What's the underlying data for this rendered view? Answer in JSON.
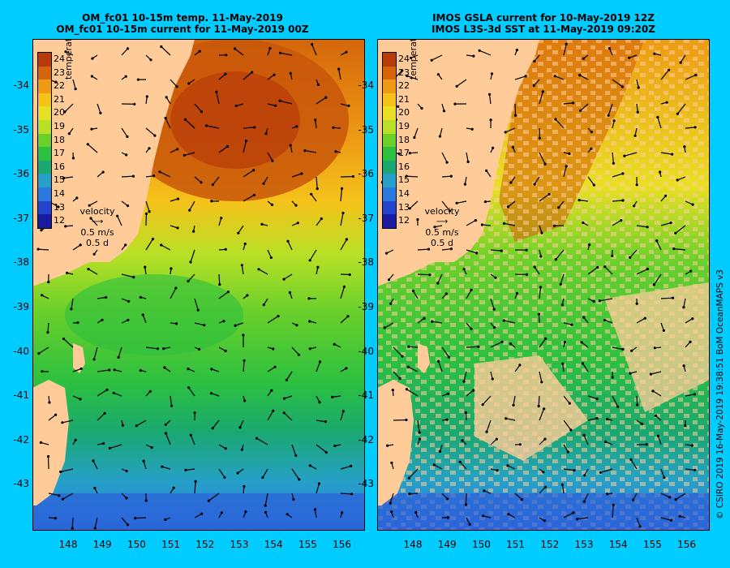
{
  "left_panel": {
    "title_line1": "OM_fc01 10-15m temp. 11-May-2019",
    "title_line2": "OM_fc01 10-15m current for 11-May-2019 00Z"
  },
  "right_panel": {
    "title_line1": "IMOS GSLA current for 10-May-2019 12Z",
    "title_line2": "IMOS L3S-3d SST at 11-May-2019 09:20Z"
  },
  "legend": {
    "title": "temperature (°C)",
    "ticks": [
      "24",
      "23",
      "22",
      "21",
      "20",
      "19",
      "18",
      "17",
      "16",
      "15",
      "14",
      "13",
      "12"
    ],
    "colors": [
      "#b83a08",
      "#d4650a",
      "#ee9a14",
      "#f5c21a",
      "#e8e024",
      "#b8e026",
      "#6cd02a",
      "#2cc040",
      "#1aa870",
      "#26a0c8",
      "#2b78e0",
      "#2244cc",
      "#1a1aa0"
    ],
    "velocity_label": "velocity",
    "velocity_speed": "0.5 m/s",
    "velocity_duration": "0.5 d"
  },
  "axes": {
    "lat_labels": [
      "-34",
      "-35",
      "-36",
      "-37",
      "-38",
      "-39",
      "-40",
      "-41",
      "-42",
      "-43"
    ],
    "lon_labels": [
      "148",
      "149",
      "150",
      "151",
      "152",
      "153",
      "154",
      "155",
      "156"
    ]
  },
  "credit": "© CSIRO 2019   16-May-2019 19:38:51 BoM OceanMAPS v3",
  "colors": {
    "background": "#00ccff",
    "land": "#ffcc99"
  }
}
